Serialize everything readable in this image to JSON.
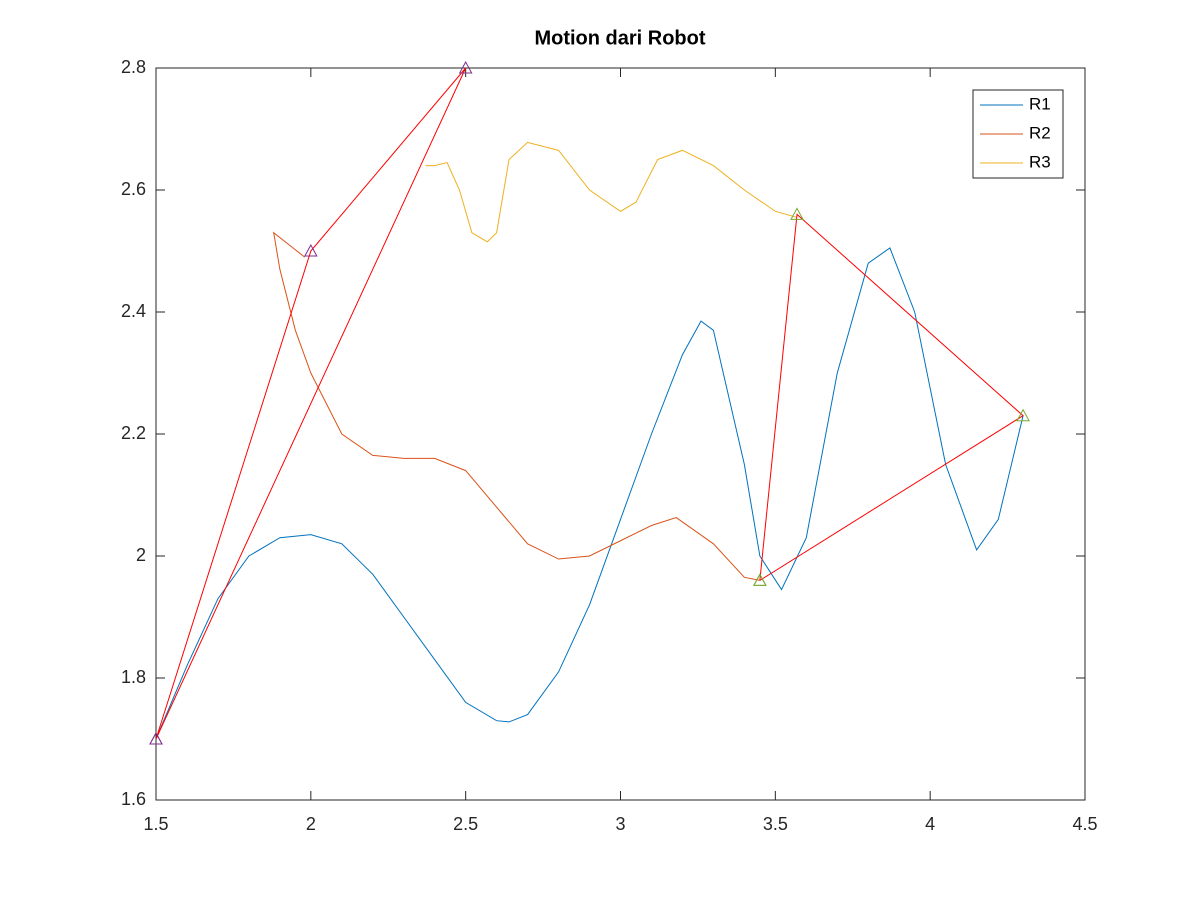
{
  "chart_data": {
    "type": "line",
    "title": "Motion dari Robot",
    "xlim": [
      1.5,
      4.5
    ],
    "ylim": [
      1.6,
      2.8
    ],
    "xticks": [
      1.5,
      2,
      2.5,
      3,
      3.5,
      4,
      4.5
    ],
    "yticks": [
      1.6,
      1.8,
      2,
      2.2,
      2.4,
      2.6,
      2.8
    ],
    "legend": "northeast",
    "series": [
      {
        "name": "R1",
        "color": "#0072bd",
        "x": [
          1.5,
          1.6,
          1.7,
          1.8,
          1.9,
          2.0,
          2.1,
          2.2,
          2.3,
          2.4,
          2.5,
          2.6,
          2.64,
          2.7,
          2.8,
          2.9,
          3.0,
          3.1,
          3.2,
          3.26,
          3.3,
          3.4,
          3.45,
          3.52,
          3.6,
          3.7,
          3.8,
          3.87,
          3.95,
          4.05,
          4.15,
          4.22,
          4.3
        ],
        "y": [
          1.7,
          1.82,
          1.93,
          2.0,
          2.03,
          2.035,
          2.02,
          1.97,
          1.9,
          1.83,
          1.76,
          1.73,
          1.728,
          1.74,
          1.81,
          1.92,
          2.06,
          2.2,
          2.33,
          2.385,
          2.37,
          2.15,
          2.0,
          1.945,
          2.03,
          2.3,
          2.48,
          2.505,
          2.4,
          2.15,
          2.01,
          2.06,
          2.23
        ]
      },
      {
        "name": "R2",
        "color": "#d95319",
        "x": [
          1.98,
          1.93,
          1.88,
          1.9,
          1.95,
          2.0,
          2.1,
          2.2,
          2.3,
          2.4,
          2.5,
          2.6,
          2.7,
          2.8,
          2.9,
          3.0,
          3.1,
          3.18,
          3.3,
          3.4,
          3.45
        ],
        "y": [
          2.49,
          2.51,
          2.53,
          2.47,
          2.37,
          2.3,
          2.2,
          2.165,
          2.16,
          2.16,
          2.14,
          2.08,
          2.02,
          1.995,
          2.0,
          2.025,
          2.05,
          2.063,
          2.02,
          1.965,
          1.96
        ]
      },
      {
        "name": "R3",
        "color": "#edb120",
        "x": [
          2.37,
          2.4,
          2.44,
          2.48,
          2.52,
          2.57,
          2.6,
          2.64,
          2.7,
          2.8,
          2.9,
          3.0,
          3.05,
          3.12,
          3.2,
          3.3,
          3.4,
          3.5,
          3.57
        ],
        "y": [
          2.64,
          2.64,
          2.645,
          2.6,
          2.53,
          2.515,
          2.53,
          2.65,
          2.678,
          2.665,
          2.6,
          2.565,
          2.58,
          2.65,
          2.665,
          2.64,
          2.6,
          2.565,
          2.555
        ]
      }
    ],
    "paths": [
      {
        "color": "#ff0000",
        "marker_color": "#7e2f8e",
        "x": [
          1.5,
          2,
          2.5,
          1.5
        ],
        "y": [
          1.7,
          2.5,
          2.8,
          1.7
        ]
      },
      {
        "color": "#ff0000",
        "marker_color": "#77ac30",
        "x": [
          3.45,
          3.57,
          4.3,
          3.45
        ],
        "y": [
          1.96,
          2.56,
          2.23,
          1.96
        ]
      }
    ]
  }
}
